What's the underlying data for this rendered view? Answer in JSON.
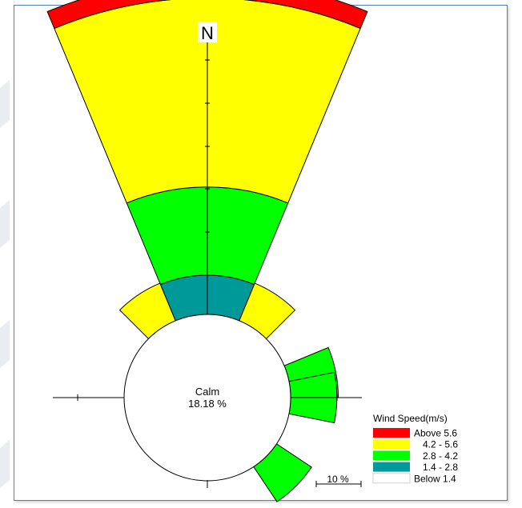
{
  "chart_data": {
    "type": "wind-rose",
    "north_label": "N",
    "calm": {
      "label": "Calm",
      "value_text": "18.18 %",
      "value": 18.18
    },
    "legend": {
      "title": "Wind Speed(m/s)",
      "items": [
        {
          "label": "Above 5.6",
          "color": "#ff0000"
        },
        {
          "label": "4.2 - 5.6",
          "color": "#ffff00"
        },
        {
          "label": "2.8 - 4.2",
          "color": "#00ff00"
        },
        {
          "label": "1.4 - 2.8",
          "color": "#009999"
        },
        {
          "label": "Below 1.4",
          "color": "#ffffff"
        }
      ]
    },
    "scale_label": "10 %",
    "directions": [
      {
        "direction": "N",
        "speed_bins": [
          2.8,
          6.3,
          13.5,
          1.3
        ]
      },
      {
        "direction": "NNE",
        "speed_bins": [
          0,
          0,
          2.9,
          0
        ]
      },
      {
        "direction": "ENE",
        "speed_bins": [
          0,
          3.4,
          0,
          0
        ]
      },
      {
        "direction": "E",
        "speed_bins": [
          0,
          3.3,
          0,
          0
        ]
      },
      {
        "direction": "SE",
        "speed_bins": [
          0,
          3.0,
          0,
          0
        ]
      },
      {
        "direction": "NNW",
        "speed_bins": [
          0,
          0,
          2.9,
          0
        ]
      }
    ]
  }
}
